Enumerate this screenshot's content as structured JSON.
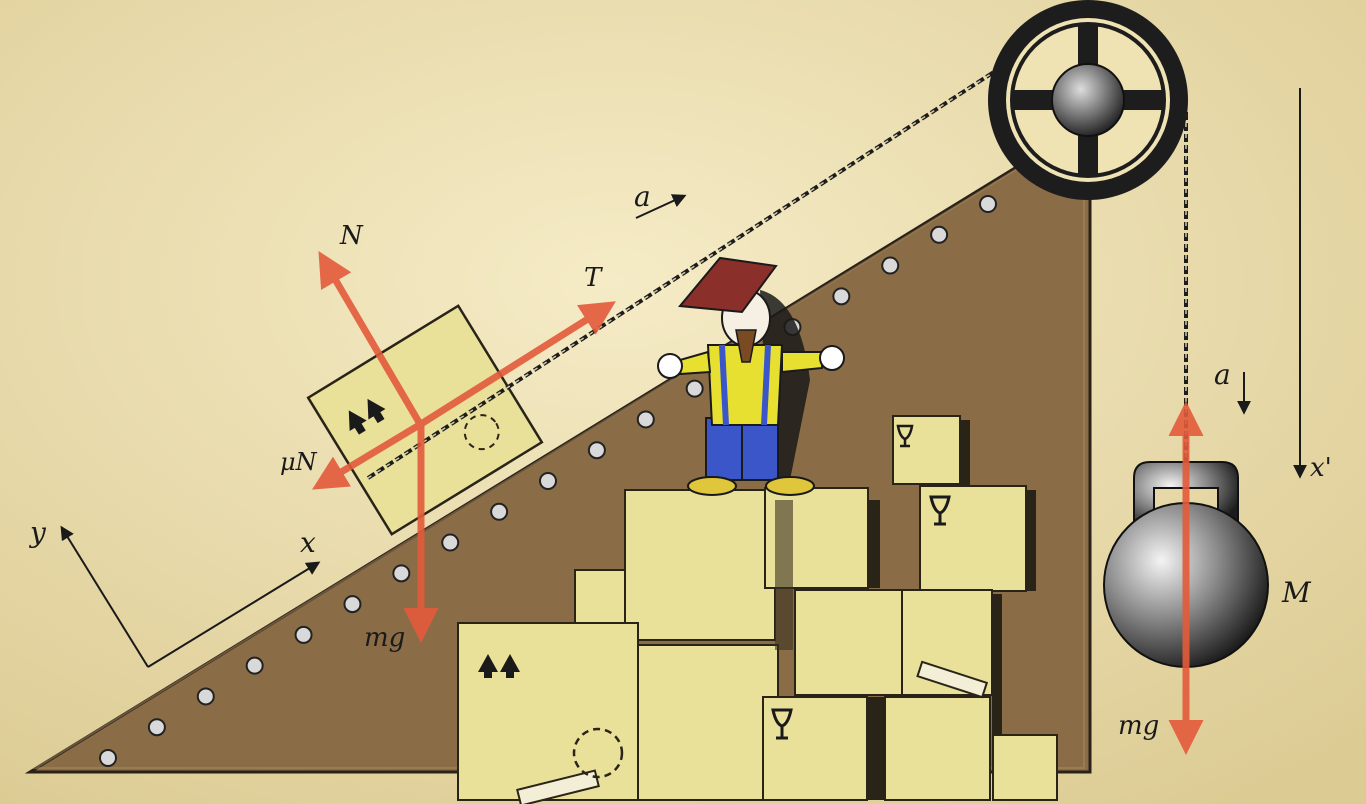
{
  "labels": {
    "normal_force": "N",
    "friction_force": "μN",
    "tension": "T",
    "block_weight": "mg",
    "acceleration_block": "a",
    "acceleration_weight": "a",
    "axis_x": "x",
    "axis_y": "y",
    "axis_x_prime": "x'",
    "hanging_mass": "M",
    "hanging_weight": "mg"
  },
  "colors": {
    "background": "#efe2b3",
    "incline": "#8a6d46",
    "force_arrow": "#e35b3b",
    "box": "#e9e09a",
    "chain": "#222222",
    "pulley": "#1d1d1d"
  },
  "icons": [
    "up-arrows-icon",
    "fragile-glass-icon"
  ]
}
